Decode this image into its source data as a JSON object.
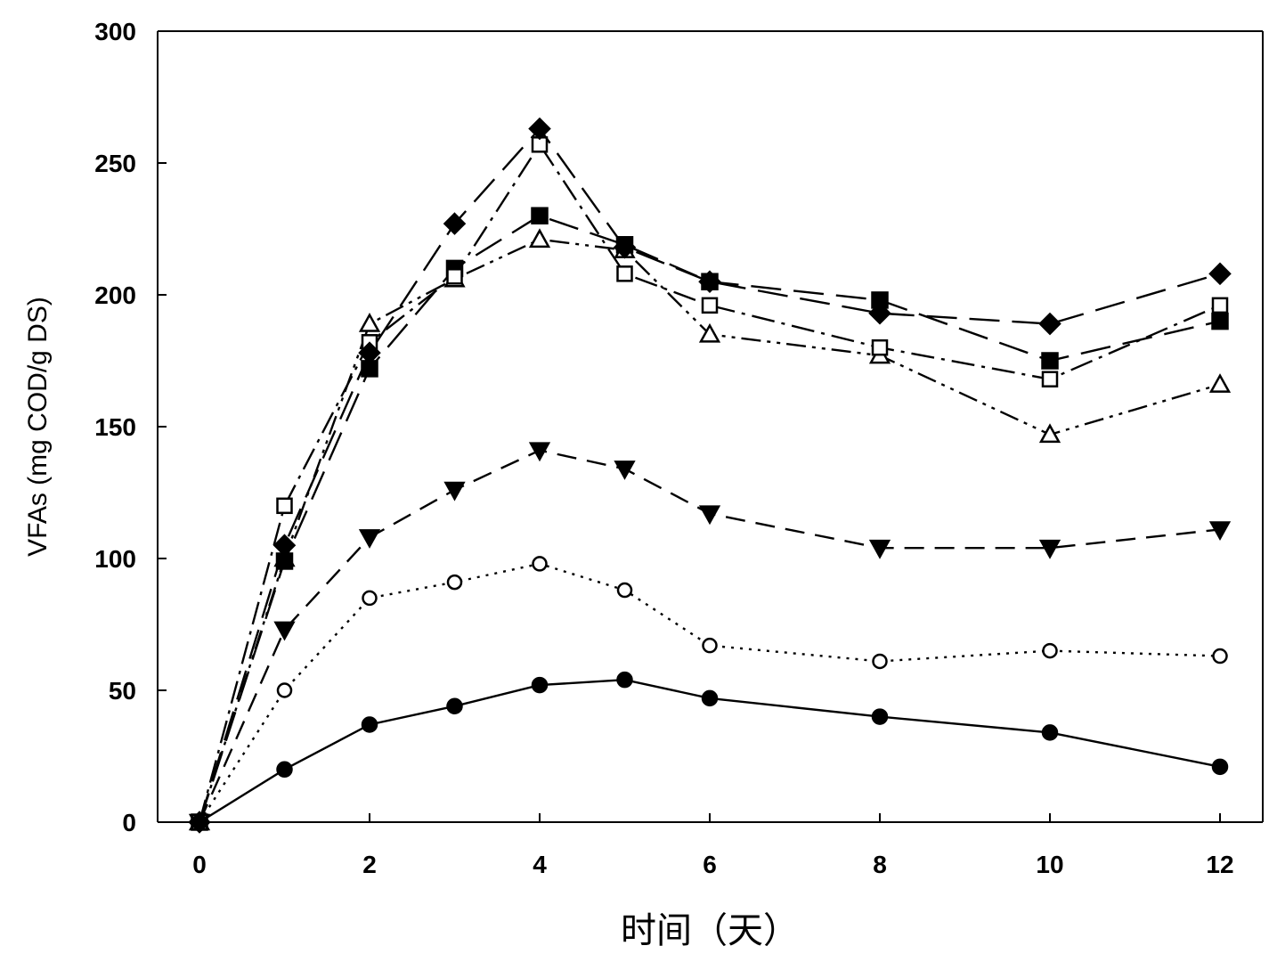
{
  "chart_data": {
    "type": "line",
    "title": "",
    "xlabel": "时间（天）",
    "ylabel": "VFAs (mg COD/g DS)",
    "xlim": [
      -1,
      13
    ],
    "ylim": [
      0,
      300
    ],
    "xticks": [
      0,
      2,
      4,
      6,
      8,
      10,
      12
    ],
    "yticks": [
      0,
      50,
      100,
      150,
      200,
      250,
      300
    ],
    "grid": false,
    "legend": "none",
    "x": [
      0,
      1,
      2,
      3,
      4,
      5,
      6,
      8,
      10,
      12
    ],
    "series": [
      {
        "marker": "filled-circle",
        "line_style": "solid",
        "values": [
          0,
          20,
          37,
          44,
          52,
          54,
          47,
          40,
          34,
          21
        ]
      },
      {
        "marker": "open-circle",
        "line_style": "dotted",
        "values": [
          0,
          50,
          85,
          91,
          98,
          88,
          67,
          61,
          65,
          63
        ]
      },
      {
        "marker": "filled-triangle-down",
        "line_style": "dash",
        "values": [
          0,
          73,
          108,
          126,
          141,
          134,
          117,
          104,
          104,
          111
        ]
      },
      {
        "marker": "open-triangle-up",
        "line_style": "dash-dot-dot",
        "values": [
          0,
          100,
          189,
          206,
          221,
          217,
          185,
          177,
          147,
          166
        ]
      },
      {
        "marker": "filled-square",
        "line_style": "long-dash",
        "values": [
          0,
          99,
          172,
          210,
          230,
          219,
          205,
          198,
          175,
          190
        ]
      },
      {
        "marker": "open-square",
        "line_style": "dash-dot",
        "values": [
          0,
          120,
          182,
          207,
          257,
          208,
          196,
          180,
          168,
          196
        ]
      },
      {
        "marker": "filled-diamond",
        "line_style": "long-dash",
        "values": [
          0,
          105,
          178,
          227,
          263,
          218,
          205,
          193,
          189,
          208
        ]
      }
    ]
  }
}
